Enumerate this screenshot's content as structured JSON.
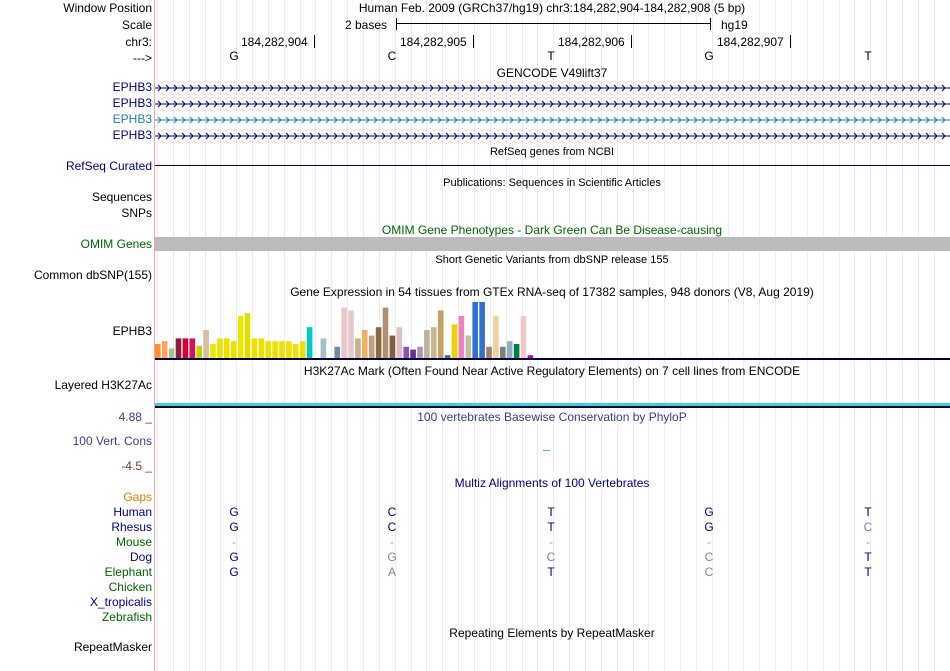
{
  "colors": {
    "accent_blue": "#000080",
    "pack_gene_light": "#1f7fb0",
    "omim_gray": "#bcbcbc",
    "omim_title": "#006400",
    "gaps": "#e07b00",
    "green_species": "#006400",
    "phylop_pos": "#3b3b8f",
    "phylop_neg": "#8b2e2e",
    "h3k27ac_line": "#3fd3d3",
    "left_border": "#f3a4a4"
  },
  "header": {
    "window_position_label": "Window Position",
    "window_position_value": "Human Feb. 2009 (GRCh37/hg19)   chr3:184,282,904-184,282,908 (5 bp)",
    "scale_label": "Scale",
    "scale_text": "2 bases",
    "assembly": "hg19",
    "chrom_label": "chr3:",
    "strand_label": "--->",
    "coords": [
      "184,282,904",
      "184,282,905",
      "184,282,906",
      "184,282,907"
    ],
    "bases": [
      "G",
      "C",
      "T",
      "G",
      "T"
    ]
  },
  "tracks": {
    "gencode_title": "GENCODE V49lift37",
    "gencode_genes": [
      "EPHB3",
      "EPHB3",
      "EPHB3",
      "EPHB3"
    ],
    "refseq_label": "RefSeq Curated",
    "refseq_title": "RefSeq genes from NCBI",
    "publications_title": "Publications: Sequences in Scientific Articles",
    "sequences_label": "Sequences",
    "snps_label": "SNPs",
    "omim_title": "OMIM Gene Phenotypes - Dark Green Can Be Disease-causing",
    "omim_label": "OMIM Genes",
    "dbsnp_title": "Short Genetic Variants from dbSNP release 155",
    "dbsnp_label": "Common dbSNP(155)",
    "gtex_title": "Gene Expression in 54 tissues from GTEx RNA-seq of 17382 samples, 948 donors (V8, Aug 2019)",
    "gtex_label": "EPHB3",
    "h3k27ac_title": "H3K27Ac Mark (Often Found Near Active Regulatory Elements) on 7 cell lines from ENCODE",
    "h3k27ac_label": "Layered H3K27Ac",
    "phylop_max": "4.88 _",
    "phylop_title": "100 vertebrates Basewise Conservation by PhyloP",
    "cons_label": "100 Vert. Cons",
    "phylop_min": "-4.5 _",
    "multiz_title": "Multiz Alignments of 100 Vertebrates",
    "gaps_label": "Gaps",
    "repeat_title": "Repeating Elements by RepeatMasker",
    "repeat_label": "RepeatMasker"
  },
  "gtex_values": [
    0.25,
    0.3,
    0.17,
    0.35,
    0.35,
    0.35,
    0.22,
    0.5,
    0.25,
    0.35,
    0.35,
    0.3,
    0.75,
    0.8,
    0.35,
    0.35,
    0.3,
    0.3,
    0.3,
    0.3,
    0.25,
    0.3,
    0.55,
    0.0,
    0.35,
    0.0,
    0.2,
    0.9,
    0.85,
    0.35,
    0.5,
    0.4,
    0.55,
    0.9,
    0.4,
    0.55,
    0.2,
    0.15,
    0.2,
    0.5,
    0.55,
    0.85,
    0.05,
    0.6,
    0.75,
    0.4,
    1.0,
    1.0,
    0.2,
    0.75,
    0.2,
    0.3,
    0.25,
    0.75,
    0.05
  ],
  "gtex_colors": [
    "#ff8f2f",
    "#ff9f60",
    "#a3c48d",
    "#8b1c40",
    "#d5002f",
    "#d80f56",
    "#cfcf00",
    "#d6c0a0",
    "#e8e800",
    "#f0e000",
    "#f0e000",
    "#f0e000",
    "#e8e800",
    "#e0e000",
    "#f0e000",
    "#f0e000",
    "#f0e000",
    "#f0e000",
    "#f0e000",
    "#f0e000",
    "#f0e000",
    "#f0e000",
    "#00c8c8",
    "#ffffff",
    "#a0c0d0",
    "#ffffff",
    "#6c8fa0",
    "#e8c8c8",
    "#e8c8c8",
    "#c8b090",
    "#f0b060",
    "#c0a080",
    "#8a6a40",
    "#b09070",
    "#806040",
    "#e0c0c0",
    "#9050c0",
    "#6a3090",
    "#b090c0",
    "#c0b0a0",
    "#c8b890",
    "#c8a060",
    "#4060b0",
    "#f0d000",
    "#f080c0",
    "#c0c0a0",
    "#3070d0",
    "#3070d0",
    "#a08060",
    "#f0d0a0",
    "#808080",
    "#90b0c0",
    "#008040",
    "#f0c8c8",
    "#c000c0"
  ],
  "multiz": {
    "species": [
      {
        "name": "Human",
        "color": "#000080",
        "bases": [
          "G",
          "C",
          "T",
          "G",
          "T"
        ]
      },
      {
        "name": "Rhesus",
        "color": "#000080",
        "bases": [
          "G",
          "C",
          "T",
          "G",
          "C"
        ]
      },
      {
        "name": "Mouse",
        "color": "#006400",
        "bases": [
          "-",
          "-",
          "-",
          "-",
          "-"
        ]
      },
      {
        "name": "Dog",
        "color": "#000080",
        "bases": [
          "G",
          "G",
          "C",
          "C",
          "T"
        ]
      },
      {
        "name": "Elephant",
        "color": "#006400",
        "bases": [
          "G",
          "A",
          "T",
          "C",
          "T"
        ]
      },
      {
        "name": "Chicken",
        "color": "#006400",
        "bases": [
          "",
          "",
          "",
          "",
          ""
        ]
      },
      {
        "name": "X_tropicalis",
        "color": "#000080",
        "bases": [
          "",
          "",
          "",
          "",
          ""
        ]
      },
      {
        "name": "Zebrafish",
        "color": "#006400",
        "bases": [
          "",
          "",
          "",
          "",
          ""
        ]
      }
    ]
  }
}
